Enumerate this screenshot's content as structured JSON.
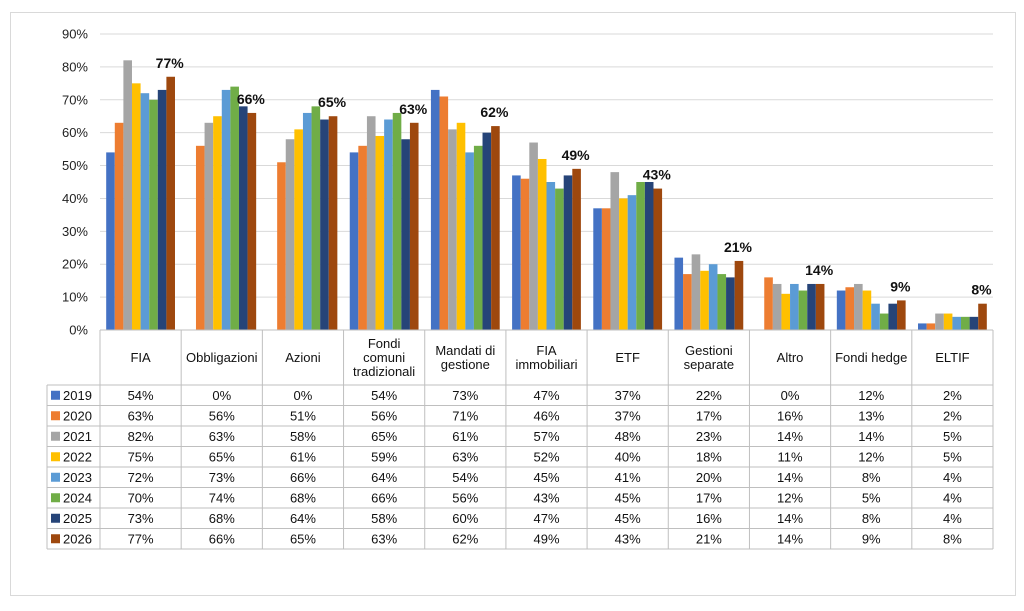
{
  "chart_data": {
    "type": "bar",
    "categories": [
      "FIA",
      "Obbligazioni",
      "Azioni",
      "Fondi comuni tradizionali",
      "Mandati di gestione",
      "FIA immobiliari",
      "ETF",
      "Gestioni separate",
      "Altro",
      "Fondi hedge",
      "ELTIF"
    ],
    "category_lines": [
      [
        "FIA"
      ],
      [
        "Obbligazioni"
      ],
      [
        "Azioni"
      ],
      [
        "Fondi",
        "comuni",
        "tradizionali"
      ],
      [
        "Mandati di",
        "gestione"
      ],
      [
        "FIA",
        "immobiliari"
      ],
      [
        "ETF"
      ],
      [
        "Gestioni",
        "separate"
      ],
      [
        "Altro"
      ],
      [
        "Fondi hedge"
      ],
      [
        "ELTIF"
      ]
    ],
    "series": [
      {
        "name": "2019",
        "color": "#4472C4",
        "values": [
          54,
          0,
          0,
          54,
          73,
          47,
          37,
          22,
          0,
          12,
          2
        ]
      },
      {
        "name": "2020",
        "color": "#ED7D31",
        "values": [
          63,
          56,
          51,
          56,
          71,
          46,
          37,
          17,
          16,
          13,
          2
        ]
      },
      {
        "name": "2021",
        "color": "#A5A5A5",
        "values": [
          82,
          63,
          58,
          65,
          61,
          57,
          48,
          23,
          14,
          14,
          5
        ]
      },
      {
        "name": "2022",
        "color": "#FFC000",
        "values": [
          75,
          65,
          61,
          59,
          63,
          52,
          40,
          18,
          11,
          12,
          5
        ]
      },
      {
        "name": "2023",
        "color": "#5B9BD5",
        "values": [
          72,
          73,
          66,
          64,
          54,
          45,
          41,
          20,
          14,
          8,
          4
        ]
      },
      {
        "name": "2024",
        "color": "#70AD47",
        "values": [
          70,
          74,
          68,
          66,
          56,
          43,
          45,
          17,
          12,
          5,
          4
        ]
      },
      {
        "name": "2025",
        "color": "#264478",
        "values": [
          73,
          68,
          64,
          58,
          60,
          47,
          45,
          16,
          14,
          8,
          4
        ]
      },
      {
        "name": "2026",
        "color": "#9E480E",
        "values": [
          77,
          66,
          65,
          63,
          62,
          49,
          43,
          21,
          14,
          9,
          8
        ]
      }
    ],
    "data_labels": [
      "77%",
      "66%",
      "65%",
      "63%",
      "62%",
      "49%",
      "43%",
      "21%",
      "14%",
      "9%",
      "8%"
    ],
    "table": [
      [
        "54%",
        "0%",
        "0%",
        "54%",
        "73%",
        "47%",
        "37%",
        "22%",
        "0%",
        "12%",
        "2%"
      ],
      [
        "63%",
        "56%",
        "51%",
        "56%",
        "71%",
        "46%",
        "37%",
        "17%",
        "16%",
        "13%",
        "2%"
      ],
      [
        "82%",
        "63%",
        "58%",
        "65%",
        "61%",
        "57%",
        "48%",
        "23%",
        "14%",
        "14%",
        "5%"
      ],
      [
        "75%",
        "65%",
        "61%",
        "59%",
        "63%",
        "52%",
        "40%",
        "18%",
        "11%",
        "12%",
        "5%"
      ],
      [
        "72%",
        "73%",
        "66%",
        "64%",
        "54%",
        "45%",
        "41%",
        "20%",
        "14%",
        "8%",
        "4%"
      ],
      [
        "70%",
        "74%",
        "68%",
        "66%",
        "56%",
        "43%",
        "45%",
        "17%",
        "12%",
        "5%",
        "4%"
      ],
      [
        "73%",
        "68%",
        "64%",
        "58%",
        "60%",
        "47%",
        "45%",
        "16%",
        "14%",
        "8%",
        "4%"
      ],
      [
        "77%",
        "66%",
        "65%",
        "63%",
        "62%",
        "49%",
        "43%",
        "21%",
        "14%",
        "9%",
        "8%"
      ]
    ],
    "yticks": [
      "0%",
      "10%",
      "20%",
      "30%",
      "40%",
      "50%",
      "60%",
      "70%",
      "80%",
      "90%"
    ],
    "ylim": [
      0,
      90
    ],
    "grid": true,
    "legend": "data-table"
  }
}
